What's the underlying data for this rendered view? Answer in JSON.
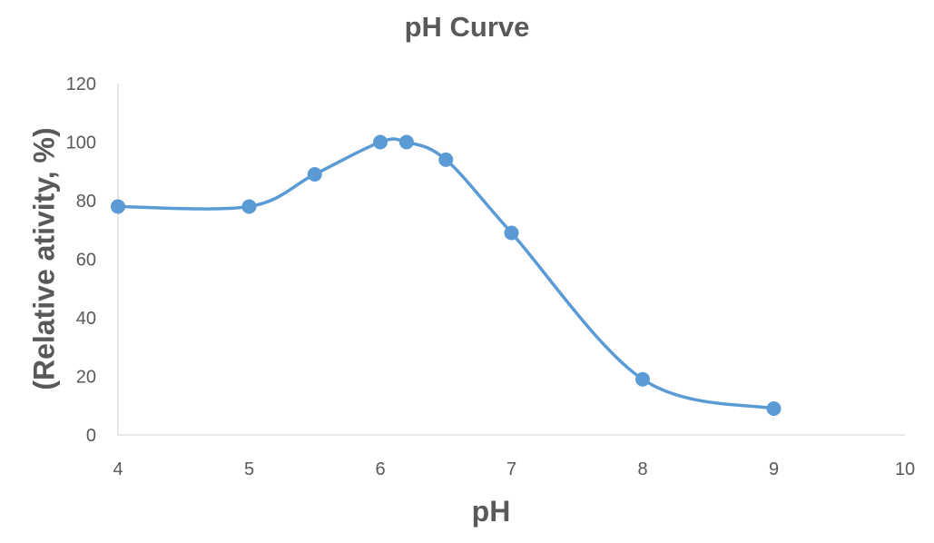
{
  "chart_data": {
    "type": "line",
    "title": "pH Curve",
    "xlabel": "pH",
    "ylabel": "(Relative ativity, %)",
    "xlim": [
      4,
      10
    ],
    "ylim": [
      0,
      120
    ],
    "x_ticks": [
      4,
      5,
      6,
      7,
      8,
      9,
      10
    ],
    "y_ticks": [
      0,
      20,
      40,
      60,
      80,
      100,
      120
    ],
    "grid": false,
    "smooth": true,
    "series": [
      {
        "color": "#5B9BD5",
        "x": [
          4,
          5,
          5.5,
          6,
          6.2,
          6.5,
          7,
          8,
          9
        ],
        "y": [
          78,
          78,
          89,
          100,
          100,
          94,
          69,
          19,
          9
        ]
      }
    ]
  }
}
